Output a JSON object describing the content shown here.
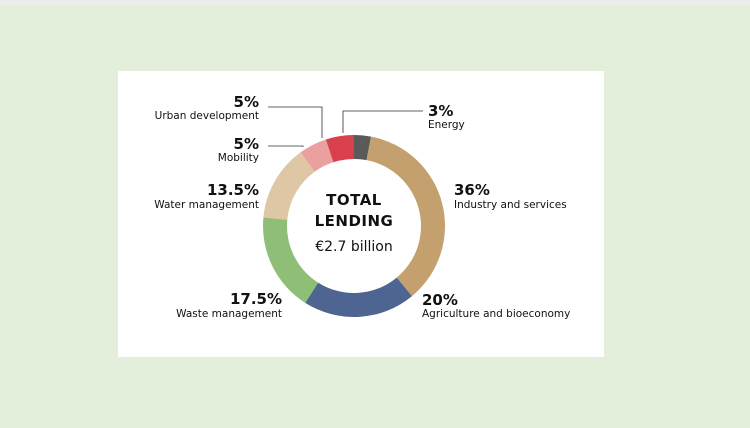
{
  "chart_data": {
    "type": "pie",
    "title": "",
    "center_text": [
      "TOTAL",
      "LENDING",
      "€2.7 billion"
    ],
    "slices": [
      {
        "label": "Energy",
        "value_label": "3%",
        "value": 3,
        "color": "#5a5a5a"
      },
      {
        "label": "Industry and services",
        "value_label": "36%",
        "value": 36,
        "color": "#c4a06f"
      },
      {
        "label": "Agriculture and bioeconomy",
        "value_label": "20%",
        "value": 20,
        "color": "#4e6591"
      },
      {
        "label": "Waste management",
        "value_label": "17.5%",
        "value": 17.5,
        "color": "#8fbe77"
      },
      {
        "label": "Water management",
        "value_label": "13.5%",
        "value": 13.5,
        "color": "#dfc7a5"
      },
      {
        "label": "Mobility",
        "value_label": "5%",
        "value": 5,
        "color": "#eaa09e"
      },
      {
        "label": "Urban development",
        "value_label": "5%",
        "value": 5,
        "color": "#d9404e"
      }
    ]
  }
}
